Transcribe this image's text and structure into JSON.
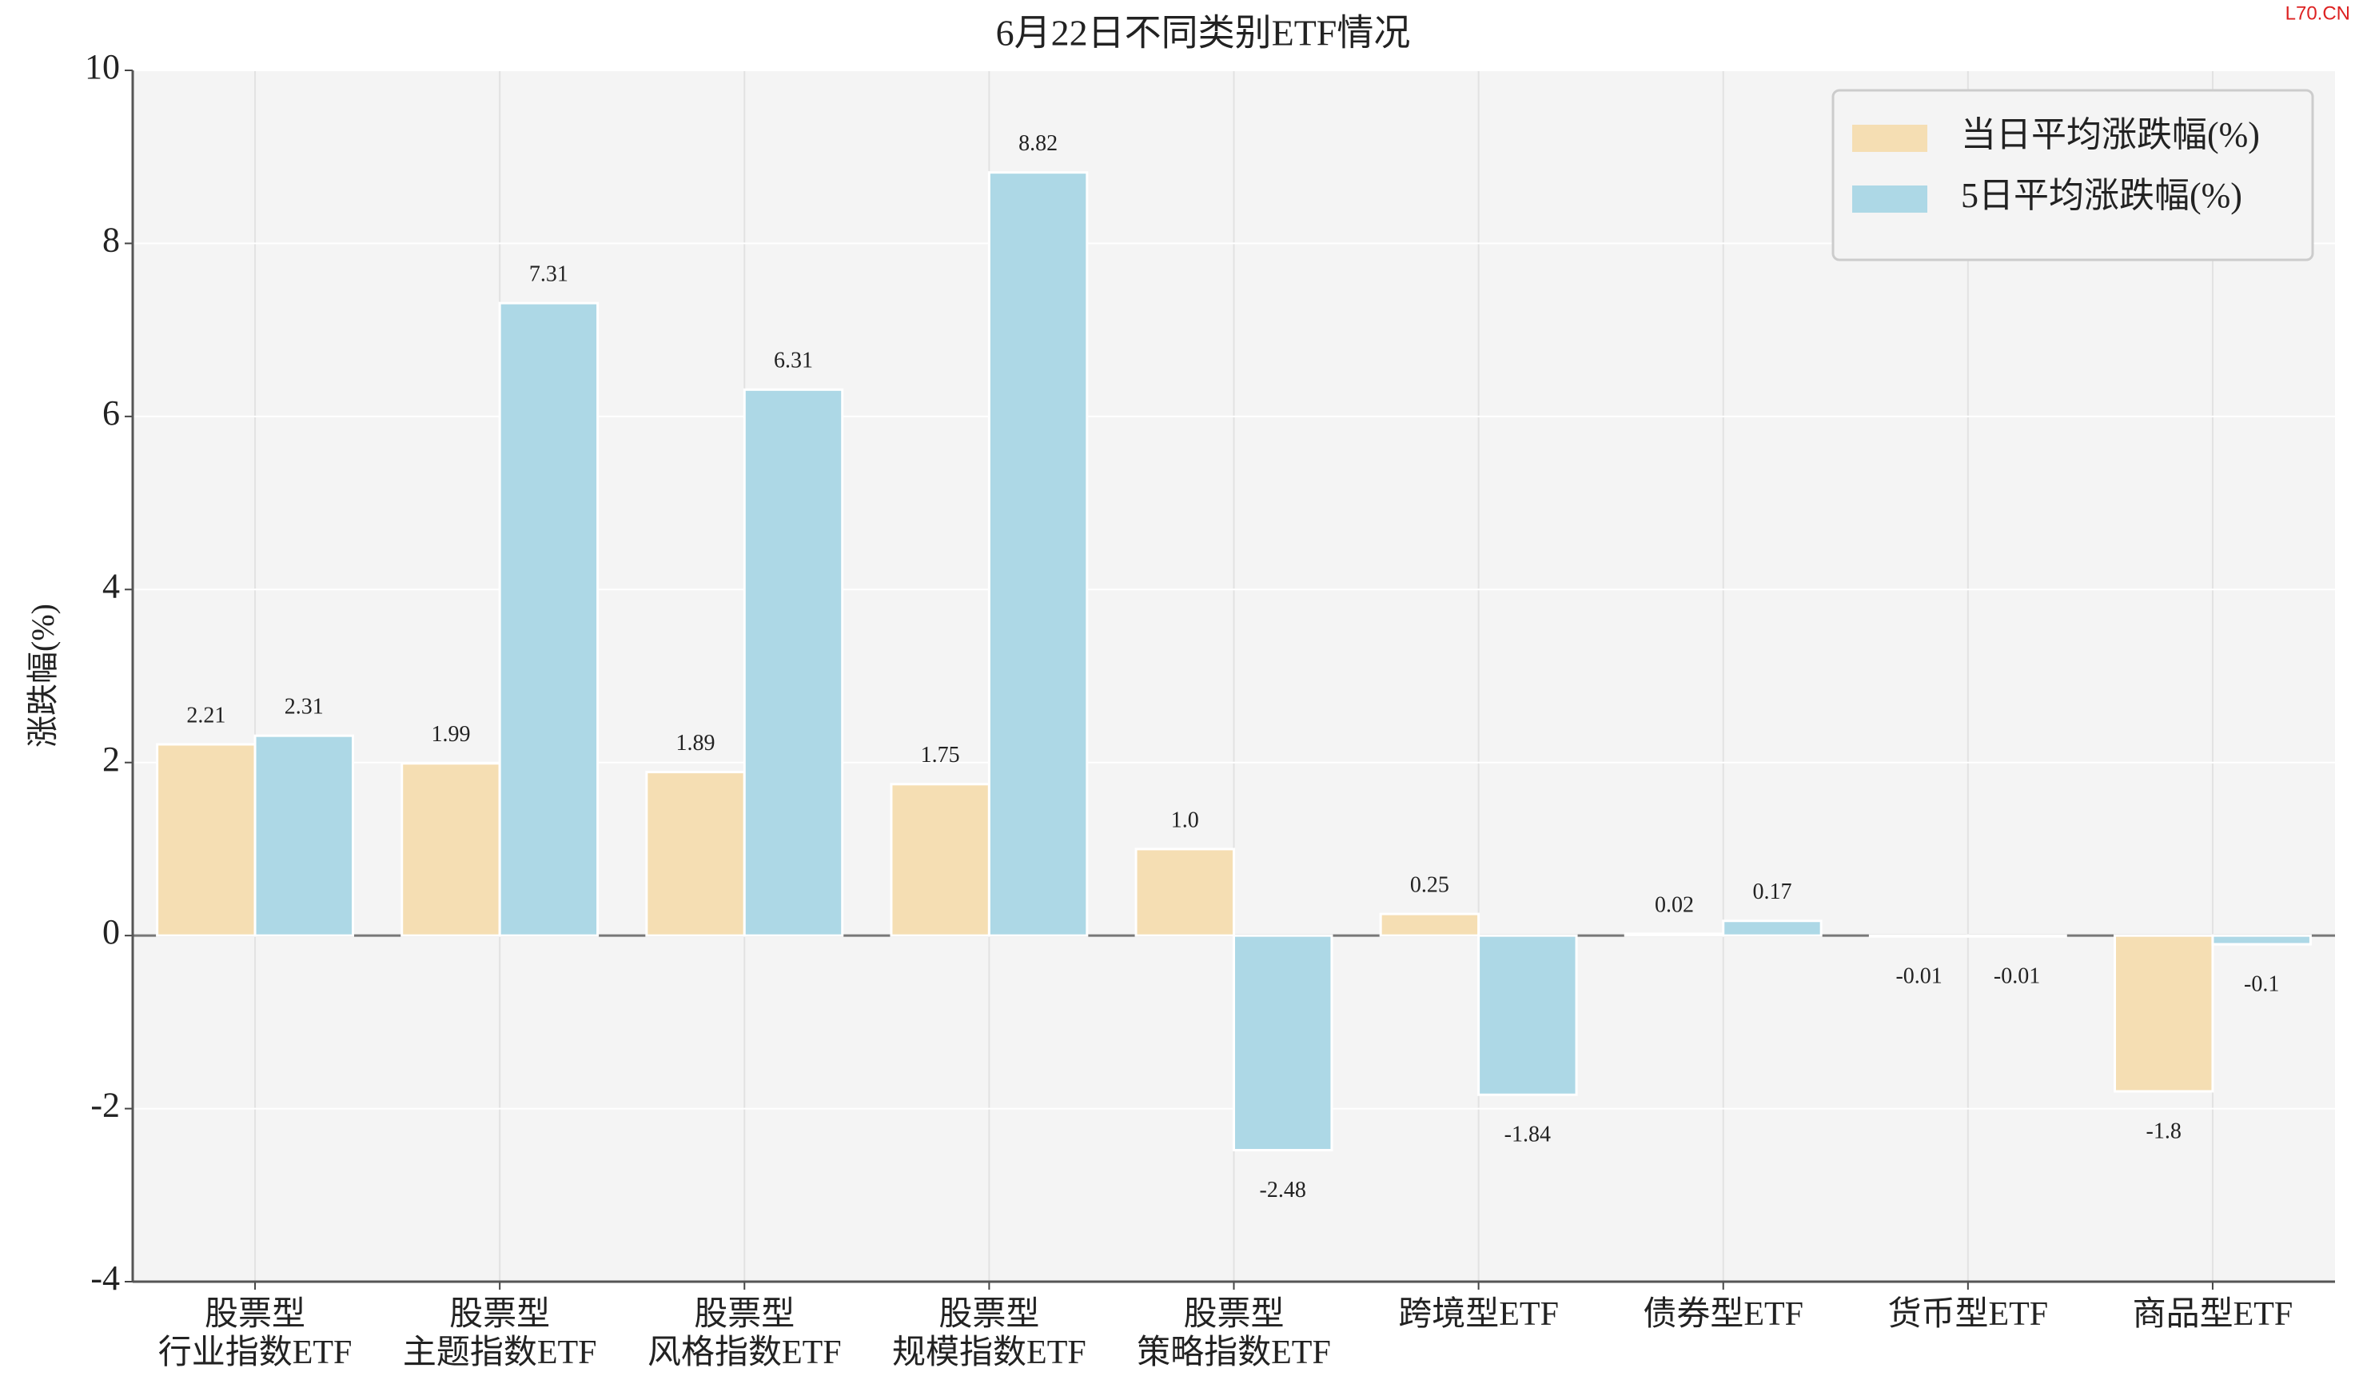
{
  "chart_data": {
    "type": "bar",
    "title": "6月22日不同类别ETF情况",
    "ylabel": "涨跌幅(%)",
    "watermark": "L70.CN",
    "categories": [
      [
        "股票型",
        "行业指数ETF"
      ],
      [
        "股票型",
        "主题指数ETF"
      ],
      [
        "股票型",
        "风格指数ETF"
      ],
      [
        "股票型",
        "规模指数ETF"
      ],
      [
        "股票型",
        "策略指数ETF"
      ],
      [
        "跨境型ETF"
      ],
      [
        "债券型ETF"
      ],
      [
        "货币型ETF"
      ],
      [
        "商品型ETF"
      ]
    ],
    "series": [
      {
        "name": "当日平均涨跌幅(%)",
        "color": "#f5deb3",
        "values": [
          2.21,
          1.99,
          1.89,
          1.75,
          1.0,
          0.25,
          0.02,
          -0.01,
          -1.8
        ],
        "value_labels": [
          "2.21",
          "1.99",
          "1.89",
          "1.75",
          "1.0",
          "0.25",
          "0.02",
          "-0.01",
          "-1.8"
        ]
      },
      {
        "name": "5日平均涨跌幅(%)",
        "color": "#add8e6",
        "values": [
          2.31,
          7.31,
          6.31,
          8.82,
          -2.48,
          -1.84,
          0.17,
          -0.01,
          -0.1
        ],
        "value_labels": [
          "2.31",
          "7.31",
          "6.31",
          "8.82",
          "-2.48",
          "-1.84",
          "0.17",
          "-0.01",
          "-0.1"
        ]
      }
    ],
    "ylim": [
      -4,
      10
    ],
    "yticks": [
      -4,
      -2,
      0,
      2,
      4,
      6,
      8,
      10
    ],
    "grid": true,
    "legend": "upper right"
  }
}
